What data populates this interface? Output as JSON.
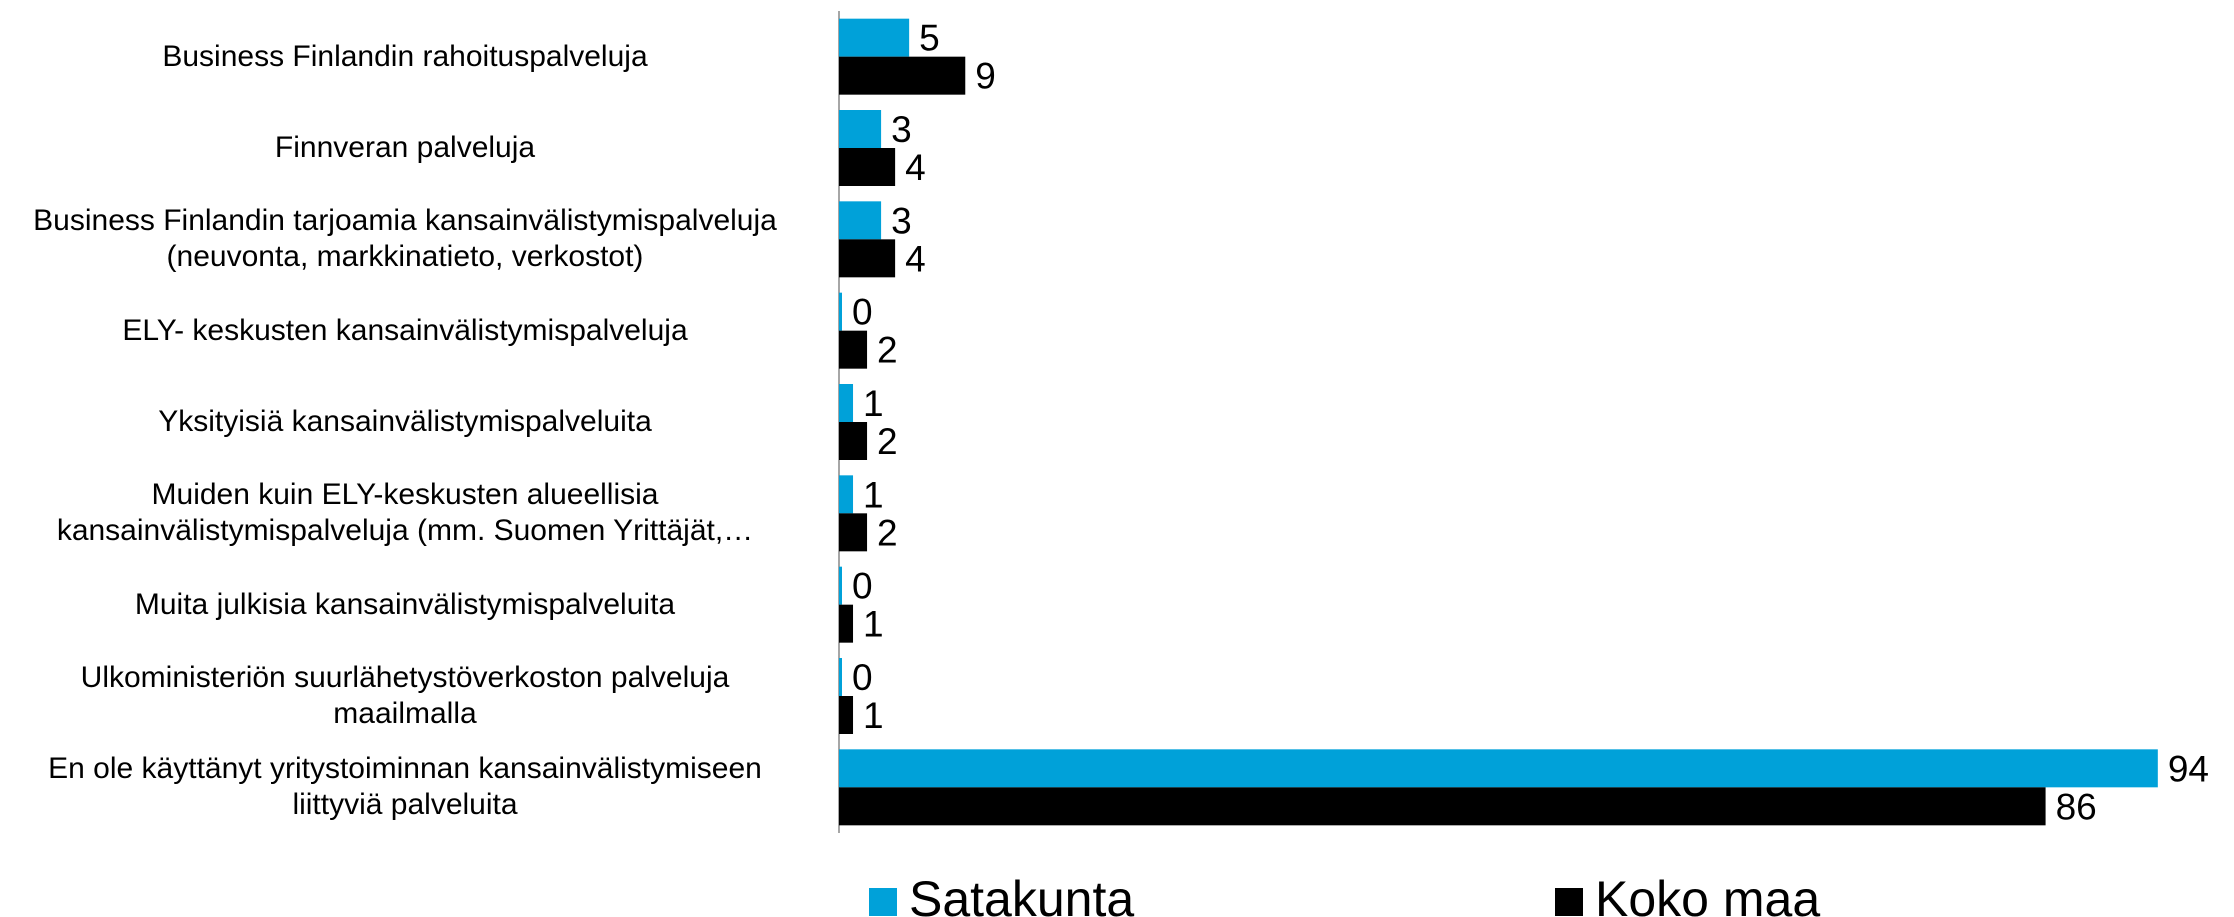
{
  "chart_data": {
    "type": "hbar",
    "categories": [
      "Business Finlandin rahoituspalveluja",
      "Finnveran palveluja",
      "Business Finlandin tarjoamia kansainvälistymispalveluja\n(neuvonta, markkinatieto, verkostot)",
      "ELY- keskusten kansainvälistymispalveluja",
      "Yksityisiä kansainvälistymispalveluita",
      "Muiden kuin ELY-keskusten alueellisia\nkansainvälistymispalveluja (mm. Suomen Yrittäjät,…",
      "Muita julkisia kansainvälistymispalveluita",
      "Ulkoministeriön suurlähetystöverkoston palveluja\nmaailmalla",
      "En ole käyttänyt yritystoiminnan kansainvälistymiseen\nliittyviä palveluita"
    ],
    "series": [
      {
        "name": "Satakunta",
        "color": "#00a1d9",
        "values": [
          5,
          3,
          3,
          0,
          1,
          1,
          0,
          0,
          94
        ]
      },
      {
        "name": "Koko maa",
        "color": "#000000",
        "values": [
          9,
          4,
          4,
          2,
          2,
          2,
          1,
          1,
          86
        ]
      }
    ]
  }
}
